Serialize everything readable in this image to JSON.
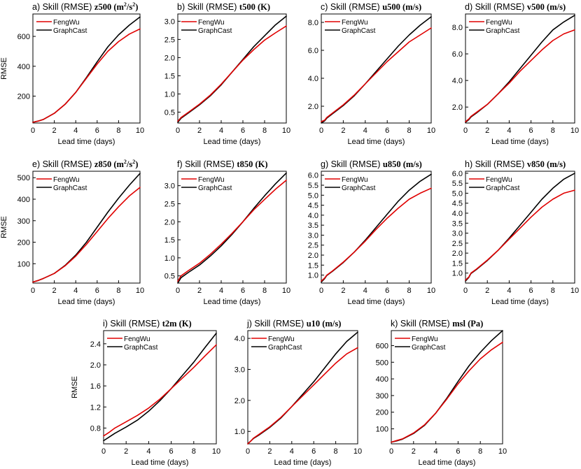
{
  "series_names": [
    "FengWu",
    "GraphCast"
  ],
  "colors": {
    "FengWu": "#e00000",
    "GraphCast": "#000000"
  },
  "chart_data": [
    {
      "type": "line",
      "panel_label": "a)",
      "title_prefix": "Skill (RMSE)",
      "var": "z500",
      "unit_html": "(m²/s²)",
      "unit_base": "(m",
      "unit_sup": "2",
      "unit_mid": "/s",
      "unit_sup2": "2",
      "unit_end": ")",
      "xlabel": "Lead time (days)",
      "ylabel": "RMSE",
      "xlim": [
        0,
        10
      ],
      "ylim": [
        20,
        750
      ],
      "xticks": [
        0,
        2,
        4,
        6,
        8,
        10
      ],
      "yticks": [
        200,
        400,
        600
      ],
      "ytick_labels": [
        "200",
        "400",
        "600"
      ],
      "series": [
        {
          "name": "FengWu",
          "x": [
            0,
            0.5,
            1,
            2,
            3,
            4,
            5,
            6,
            7,
            8,
            9,
            10
          ],
          "values": [
            25,
            33,
            45,
            85,
            145,
            225,
            320,
            415,
            500,
            565,
            615,
            650
          ]
        },
        {
          "name": "GraphCast",
          "x": [
            0,
            0.5,
            1,
            2,
            3,
            4,
            5,
            6,
            7,
            8,
            9,
            10
          ],
          "values": [
            25,
            33,
            45,
            85,
            145,
            225,
            325,
            430,
            530,
            610,
            675,
            730
          ]
        }
      ]
    },
    {
      "type": "line",
      "panel_label": "b)",
      "title_prefix": "Skill (RMSE)",
      "var": "t500",
      "unit_base": "(K)",
      "xlabel": "Lead time (days)",
      "ylabel": "",
      "xlim": [
        0,
        10
      ],
      "ylim": [
        0.2,
        3.2
      ],
      "xticks": [
        0,
        2,
        4,
        6,
        8,
        10
      ],
      "yticks": [
        0.5,
        1.0,
        1.5,
        2.0,
        2.5,
        3.0
      ],
      "ytick_labels": [
        "0.5",
        "1.0",
        "1.5",
        "2.0",
        "2.5",
        "3.0"
      ],
      "series": [
        {
          "name": "FengWu",
          "x": [
            0,
            0.3,
            1,
            2,
            3,
            4,
            5,
            6,
            7,
            8,
            9,
            10
          ],
          "values": [
            0.25,
            0.35,
            0.5,
            0.72,
            0.97,
            1.27,
            1.6,
            1.93,
            2.22,
            2.48,
            2.68,
            2.87
          ]
        },
        {
          "name": "GraphCast",
          "x": [
            0,
            0.3,
            1,
            2,
            3,
            4,
            5,
            6,
            7,
            8,
            9,
            10
          ],
          "values": [
            0.22,
            0.33,
            0.48,
            0.7,
            0.95,
            1.25,
            1.6,
            1.95,
            2.3,
            2.6,
            2.9,
            3.14
          ]
        }
      ]
    },
    {
      "type": "line",
      "panel_label": "c)",
      "title_prefix": "Skill (RMSE)",
      "var": "u500",
      "unit_base": "(m/s)",
      "xlabel": "Lead time (days)",
      "ylabel": "",
      "xlim": [
        0,
        10
      ],
      "ylim": [
        0.8,
        8.6
      ],
      "xticks": [
        0,
        2,
        4,
        6,
        8,
        10
      ],
      "yticks": [
        2.0,
        4.0,
        6.0,
        8.0
      ],
      "ytick_labels": [
        "2.0",
        "4.0",
        "6.0",
        "8.0"
      ],
      "series": [
        {
          "name": "FengWu",
          "x": [
            0,
            0.3,
            0.5,
            1,
            2,
            3,
            4,
            5,
            6,
            7,
            8,
            9,
            10
          ],
          "values": [
            0.9,
            1.0,
            1.2,
            1.5,
            2.1,
            2.8,
            3.6,
            4.4,
            5.2,
            5.9,
            6.6,
            7.1,
            7.6
          ]
        },
        {
          "name": "GraphCast",
          "x": [
            0,
            0.3,
            0.5,
            1,
            2,
            3,
            4,
            5,
            6,
            7,
            8,
            9,
            10
          ],
          "values": [
            0.8,
            0.95,
            1.15,
            1.45,
            2.05,
            2.75,
            3.6,
            4.5,
            5.4,
            6.3,
            7.1,
            7.8,
            8.4
          ]
        }
      ]
    },
    {
      "type": "line",
      "panel_label": "d)",
      "title_prefix": "Skill (RMSE)",
      "var": "v500",
      "unit_base": "(m/s)",
      "xlabel": "Lead time (days)",
      "ylabel": "",
      "xlim": [
        0,
        10
      ],
      "ylim": [
        0.8,
        9.0
      ],
      "xticks": [
        0,
        2,
        4,
        6,
        8,
        10
      ],
      "yticks": [
        2.0,
        4.0,
        6.0,
        8.0
      ],
      "ytick_labels": [
        "2.0",
        "4.0",
        "6.0",
        "8.0"
      ],
      "series": [
        {
          "name": "FengWu",
          "x": [
            0,
            0.3,
            0.5,
            1,
            2,
            3,
            4,
            5,
            6,
            7,
            8,
            9,
            10
          ],
          "values": [
            0.9,
            1.1,
            1.3,
            1.6,
            2.2,
            3.0,
            3.8,
            4.7,
            5.5,
            6.3,
            7.0,
            7.5,
            7.8
          ]
        },
        {
          "name": "GraphCast",
          "x": [
            0,
            0.3,
            0.5,
            1,
            2,
            3,
            4,
            5,
            6,
            7,
            8,
            9,
            10
          ],
          "values": [
            0.85,
            1.05,
            1.25,
            1.55,
            2.2,
            3.0,
            3.9,
            4.9,
            5.9,
            6.9,
            7.8,
            8.4,
            8.9
          ]
        }
      ]
    },
    {
      "type": "line",
      "panel_label": "e)",
      "title_prefix": "Skill (RMSE)",
      "var": "z850",
      "unit_base": "(m",
      "unit_sup": "2",
      "unit_mid": "/s",
      "unit_sup2": "2",
      "unit_end": ")",
      "xlabel": "Lead time (days)",
      "ylabel": "RMSE",
      "xlim": [
        0,
        10
      ],
      "ylim": [
        10,
        530
      ],
      "xticks": [
        0,
        2,
        4,
        6,
        8,
        10
      ],
      "yticks": [
        100,
        200,
        300,
        400,
        500
      ],
      "ytick_labels": [
        "100",
        "200",
        "300",
        "400",
        "500"
      ],
      "series": [
        {
          "name": "FengWu",
          "x": [
            0,
            0.5,
            1,
            2,
            3,
            4,
            5,
            6,
            7,
            8,
            9,
            10
          ],
          "values": [
            15,
            22,
            32,
            55,
            90,
            135,
            190,
            250,
            310,
            365,
            415,
            455
          ]
        },
        {
          "name": "GraphCast",
          "x": [
            0,
            0.5,
            1,
            2,
            3,
            4,
            5,
            6,
            7,
            8,
            9,
            10
          ],
          "values": [
            15,
            22,
            32,
            55,
            92,
            140,
            200,
            270,
            340,
            405,
            465,
            520
          ]
        }
      ]
    },
    {
      "type": "line",
      "panel_label": "f)",
      "title_prefix": "Skill (RMSE)",
      "var": "t850",
      "unit_base": "(K)",
      "xlabel": "Lead time (days)",
      "ylabel": "",
      "xlim": [
        0,
        10
      ],
      "ylim": [
        0.3,
        3.4
      ],
      "xticks": [
        0,
        2,
        4,
        6,
        8,
        10
      ],
      "yticks": [
        0.5,
        1.0,
        1.5,
        2.0,
        2.5,
        3.0
      ],
      "ytick_labels": [
        "0.5",
        "1.0",
        "1.5",
        "2.0",
        "2.5",
        "3.0"
      ],
      "series": [
        {
          "name": "FengWu",
          "x": [
            0,
            0.3,
            1,
            2,
            3,
            4,
            5,
            6,
            7,
            8,
            9,
            10
          ],
          "values": [
            0.35,
            0.5,
            0.65,
            0.85,
            1.1,
            1.38,
            1.68,
            2.0,
            2.33,
            2.62,
            2.9,
            3.15
          ]
        },
        {
          "name": "GraphCast",
          "x": [
            0,
            0.3,
            1,
            2,
            3,
            4,
            5,
            6,
            7,
            8,
            9,
            10
          ],
          "values": [
            0.3,
            0.45,
            0.6,
            0.8,
            1.05,
            1.33,
            1.65,
            2.0,
            2.37,
            2.72,
            3.05,
            3.35
          ]
        }
      ]
    },
    {
      "type": "line",
      "panel_label": "g)",
      "title_prefix": "Skill (RMSE)",
      "var": "u850",
      "unit_base": "(m/s)",
      "xlabel": "Lead time (days)",
      "ylabel": "",
      "xlim": [
        0,
        10
      ],
      "ylim": [
        0.6,
        6.2
      ],
      "xticks": [
        0,
        2,
        4,
        6,
        8,
        10
      ],
      "yticks": [
        1.0,
        1.5,
        2.0,
        2.5,
        3.0,
        3.5,
        4.0,
        4.5,
        5.0,
        5.5,
        6.0
      ],
      "ytick_labels": [
        "1.0",
        "1.5",
        "2.0",
        "2.5",
        "3.0",
        "3.5",
        "4.0",
        "4.5",
        "5.0",
        "5.5",
        "6.0"
      ],
      "series": [
        {
          "name": "FengWu",
          "x": [
            0,
            0.3,
            0.5,
            1,
            2,
            3,
            4,
            5,
            6,
            7,
            8,
            9,
            10
          ],
          "values": [
            0.7,
            0.85,
            1.0,
            1.2,
            1.65,
            2.15,
            2.7,
            3.3,
            3.85,
            4.35,
            4.8,
            5.1,
            5.35
          ]
        },
        {
          "name": "GraphCast",
          "x": [
            0,
            0.3,
            0.5,
            1,
            2,
            3,
            4,
            5,
            6,
            7,
            8,
            9,
            10
          ],
          "values": [
            0.65,
            0.82,
            0.98,
            1.18,
            1.63,
            2.15,
            2.75,
            3.4,
            4.05,
            4.7,
            5.25,
            5.7,
            6.05
          ]
        }
      ]
    },
    {
      "type": "line",
      "panel_label": "h)",
      "title_prefix": "Skill (RMSE)",
      "var": "v850",
      "unit_base": "(m/s)",
      "xlabel": "Lead time (days)",
      "ylabel": "",
      "xlim": [
        0,
        10
      ],
      "ylim": [
        0.5,
        6.1
      ],
      "xticks": [
        0,
        2,
        4,
        6,
        8,
        10
      ],
      "yticks": [
        1.0,
        1.5,
        2.0,
        2.5,
        3.0,
        3.5,
        4.0,
        4.5,
        5.0,
        5.5,
        6.0
      ],
      "ytick_labels": [
        "1.0",
        "1.5",
        "2.0",
        "2.5",
        "3.0",
        "3.5",
        "4.0",
        "4.5",
        "5.0",
        "5.5",
        "6.0"
      ],
      "series": [
        {
          "name": "FengWu",
          "x": [
            0,
            0.3,
            0.5,
            1,
            2,
            3,
            4,
            5,
            6,
            7,
            8,
            9,
            10
          ],
          "values": [
            0.65,
            0.8,
            1.0,
            1.2,
            1.65,
            2.15,
            2.7,
            3.25,
            3.8,
            4.3,
            4.7,
            5.0,
            5.15
          ]
        },
        {
          "name": "GraphCast",
          "x": [
            0,
            0.3,
            0.5,
            1,
            2,
            3,
            4,
            5,
            6,
            7,
            8,
            9,
            10
          ],
          "values": [
            0.6,
            0.78,
            0.98,
            1.18,
            1.63,
            2.15,
            2.75,
            3.4,
            4.05,
            4.7,
            5.25,
            5.7,
            6.0
          ]
        }
      ]
    },
    {
      "type": "line",
      "panel_label": "i)",
      "title_prefix": "Skill (RMSE)",
      "var": "t2m",
      "unit_base": "(K)",
      "xlabel": "Lead time (days)",
      "ylabel": "RMSE",
      "xlim": [
        0,
        10
      ],
      "ylim": [
        0.5,
        2.65
      ],
      "xticks": [
        0,
        2,
        4,
        6,
        8,
        10
      ],
      "yticks": [
        0.8,
        1.2,
        1.6,
        2.0,
        2.4
      ],
      "ytick_labels": [
        "0.8",
        "1.2",
        "1.6",
        "2.0",
        "2.4"
      ],
      "series": [
        {
          "name": "FengWu",
          "x": [
            0,
            0.5,
            1,
            2,
            3,
            4,
            5,
            6,
            7,
            8,
            9,
            10
          ],
          "values": [
            0.65,
            0.72,
            0.8,
            0.92,
            1.04,
            1.18,
            1.35,
            1.55,
            1.75,
            1.95,
            2.17,
            2.38
          ]
        },
        {
          "name": "GraphCast",
          "x": [
            0,
            0.5,
            1,
            2,
            3,
            4,
            5,
            6,
            7,
            8,
            9,
            10
          ],
          "values": [
            0.56,
            0.63,
            0.7,
            0.82,
            0.95,
            1.12,
            1.32,
            1.55,
            1.8,
            2.05,
            2.33,
            2.6
          ]
        }
      ]
    },
    {
      "type": "line",
      "panel_label": "j)",
      "title_prefix": "Skill (RMSE)",
      "var": "u10",
      "unit_base": "(m/s)",
      "xlabel": "Lead time (days)",
      "ylabel": "",
      "xlim": [
        0,
        10
      ],
      "ylim": [
        0.6,
        4.25
      ],
      "xticks": [
        0,
        2,
        4,
        6,
        8,
        10
      ],
      "yticks": [
        1.0,
        2.0,
        3.0,
        4.0
      ],
      "ytick_labels": [
        "1.0",
        "2.0",
        "3.0",
        "4.0"
      ],
      "series": [
        {
          "name": "FengWu",
          "x": [
            0,
            0.3,
            0.5,
            1,
            2,
            3,
            4,
            5,
            6,
            7,
            8,
            9,
            10
          ],
          "values": [
            0.6,
            0.7,
            0.78,
            0.9,
            1.15,
            1.45,
            1.8,
            2.15,
            2.5,
            2.85,
            3.2,
            3.5,
            3.7
          ]
        },
        {
          "name": "GraphCast",
          "x": [
            0,
            0.3,
            0.5,
            1,
            2,
            3,
            4,
            5,
            6,
            7,
            8,
            9,
            10
          ],
          "values": [
            0.6,
            0.7,
            0.77,
            0.88,
            1.13,
            1.43,
            1.8,
            2.2,
            2.6,
            3.05,
            3.5,
            3.9,
            4.2
          ]
        }
      ]
    },
    {
      "type": "line",
      "panel_label": "k)",
      "title_prefix": "Skill (RMSE)",
      "var": "msl",
      "unit_base": "(Pa)",
      "xlabel": "Lead time (days)",
      "ylabel": "",
      "xlim": [
        0,
        10
      ],
      "ylim": [
        10,
        690
      ],
      "xticks": [
        0,
        2,
        4,
        6,
        8,
        10
      ],
      "yticks": [
        100,
        200,
        300,
        400,
        500,
        600
      ],
      "ytick_labels": [
        "100",
        "200",
        "300",
        "400",
        "500",
        "600"
      ],
      "series": [
        {
          "name": "FengWu",
          "x": [
            0,
            0.5,
            1,
            2,
            3,
            4,
            5,
            6,
            7,
            8,
            9,
            10
          ],
          "values": [
            20,
            30,
            40,
            75,
            125,
            195,
            280,
            370,
            450,
            520,
            575,
            620
          ]
        },
        {
          "name": "GraphCast",
          "x": [
            0,
            0.5,
            1,
            2,
            3,
            4,
            5,
            6,
            7,
            8,
            9,
            10
          ],
          "values": [
            20,
            28,
            38,
            72,
            122,
            195,
            285,
            385,
            480,
            560,
            630,
            690
          ]
        }
      ]
    }
  ]
}
